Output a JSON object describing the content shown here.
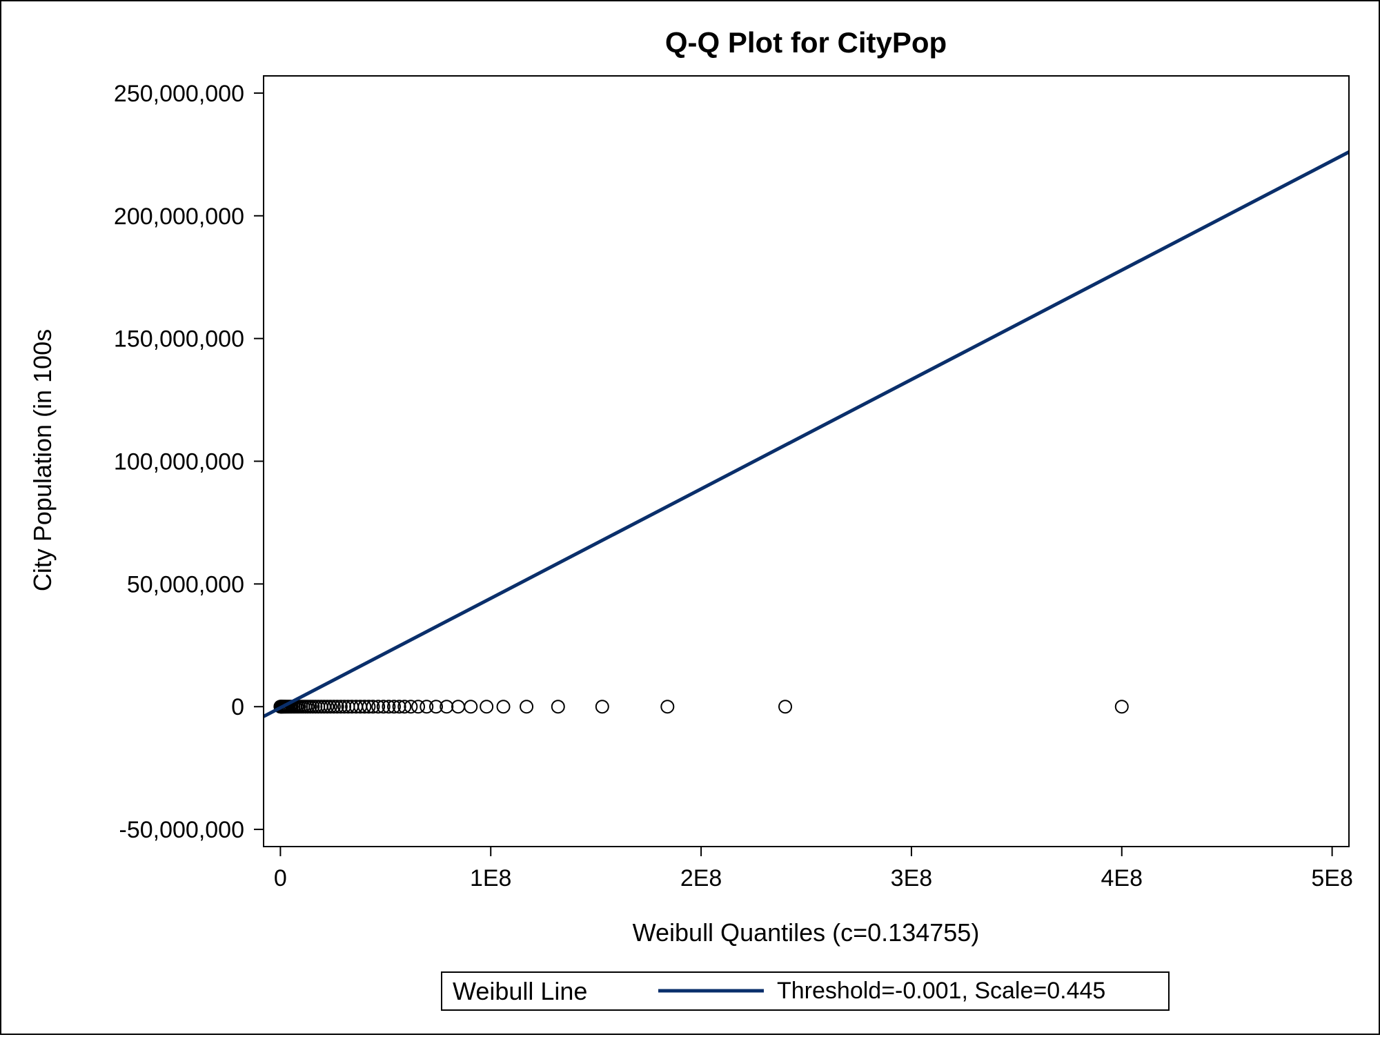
{
  "chart_data": {
    "type": "scatter",
    "title": "Q-Q Plot for CityPop",
    "xlabel": "Weibull Quantiles (c=0.134755)",
    "ylabel": "City Population (in 100s",
    "xlim": [
      -8000000,
      508000000
    ],
    "ylim": [
      -57000000,
      257000000
    ],
    "x_ticks": [
      {
        "value": 0,
        "label": "0"
      },
      {
        "value": 100000000,
        "label": "1E8"
      },
      {
        "value": 200000000,
        "label": "2E8"
      },
      {
        "value": 300000000,
        "label": "3E8"
      },
      {
        "value": 400000000,
        "label": "4E8"
      },
      {
        "value": 500000000,
        "label": "5E8"
      }
    ],
    "y_ticks": [
      {
        "value": -50000000,
        "label": "-50,000,000"
      },
      {
        "value": 0,
        "label": "0"
      },
      {
        "value": 50000000,
        "label": "50,000,000"
      },
      {
        "value": 100000000,
        "label": "100,000,000"
      },
      {
        "value": 150000000,
        "label": "150,000,000"
      },
      {
        "value": 200000000,
        "label": "200,000,000"
      },
      {
        "value": 250000000,
        "label": "250,000,000"
      }
    ],
    "series": [
      {
        "type": "scatter",
        "marker": "open-circle",
        "color": "#000000",
        "x": [
          0,
          200000,
          400000,
          700000,
          1000000,
          1400000,
          1800000,
          2300000,
          2800000,
          3400000,
          4000000,
          4700000,
          5400000,
          6200000,
          7000000,
          7900000,
          8800000,
          9800000,
          10800000,
          11900000,
          13000000,
          14200000,
          15400000,
          16700000,
          18000000,
          19400000,
          20800000,
          22300000,
          23800000,
          25400000,
          27000000,
          28700000,
          30400000,
          32200000,
          34000000,
          36000000,
          38000000,
          40000000,
          42000000,
          44000000,
          46500000,
          49000000,
          51500000,
          54000000,
          56500000,
          59000000,
          62000000,
          65500000,
          69500000,
          74000000,
          79000000,
          84500000,
          90500000,
          98000000,
          106000000,
          117000000,
          132000000,
          153000000,
          184000000,
          240000000,
          400000000
        ],
        "y": [
          0,
          0,
          0,
          0,
          0,
          0,
          0,
          0,
          0,
          0,
          0,
          0,
          0,
          0,
          0,
          0,
          0,
          0,
          0,
          0,
          0,
          0,
          0,
          0,
          0,
          0,
          0,
          0,
          0,
          0,
          0,
          0,
          0,
          0,
          0,
          0,
          0,
          0,
          0,
          0,
          0,
          0,
          0,
          0,
          0,
          0,
          0,
          0,
          0,
          0,
          0,
          0,
          0,
          0,
          0,
          0,
          0,
          0,
          0,
          0,
          0
        ]
      },
      {
        "name": "Weibull Line",
        "type": "line",
        "color": "#0a2f6b",
        "x": [
          -8000000,
          508000000
        ],
        "y": [
          -4000000,
          226000000
        ]
      }
    ],
    "legend": {
      "position": "bottom",
      "title": "Weibull Line",
      "entry": "Threshold=-0.001, Scale=0.445",
      "color": "#0a2f6b"
    }
  }
}
